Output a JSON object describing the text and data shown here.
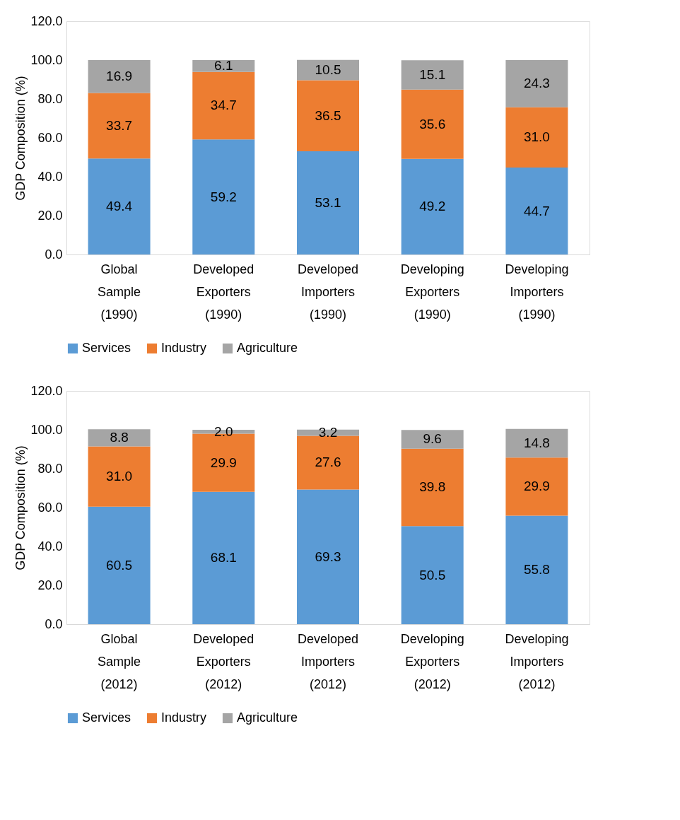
{
  "chart_data": [
    {
      "type": "bar",
      "stacked": true,
      "ylabel": "GDP Composition (%)",
      "categories": [
        "Global Sample (1990)",
        "Developed Exporters (1990)",
        "Developed Importers (1990)",
        "Developing Exporters (1990)",
        "Developing Importers (1990)"
      ],
      "series": [
        {
          "name": "Services",
          "color": "#5b9bd5",
          "values": [
            49.4,
            59.2,
            53.1,
            49.2,
            44.7
          ],
          "value_labels": [
            "49.4",
            "59.2",
            "53.1",
            "49.2",
            "44.7"
          ]
        },
        {
          "name": "Industry",
          "color": "#ed7d31",
          "values": [
            33.7,
            34.7,
            36.5,
            35.6,
            31.0
          ],
          "value_labels": [
            "33.7",
            "34.7",
            "36.5",
            "35.6",
            "31.0"
          ]
        },
        {
          "name": "Agriculture",
          "color": "#a5a5a5",
          "values": [
            16.9,
            6.1,
            10.5,
            15.1,
            24.3
          ],
          "value_labels": [
            "16.9",
            "6.1",
            "10.5",
            "15.1",
            "24.3"
          ]
        }
      ],
      "ylim": [
        0,
        120
      ],
      "yticks": [
        {
          "value": 0,
          "label": "0.0"
        },
        {
          "value": 20,
          "label": "20.0"
        },
        {
          "value": 40,
          "label": "40.0"
        },
        {
          "value": 60,
          "label": "60.0"
        },
        {
          "value": 80,
          "label": "80.0"
        },
        {
          "value": 100,
          "label": "100.0"
        },
        {
          "value": 120,
          "label": "120.0"
        }
      ],
      "grid": false,
      "legend": "bottom"
    },
    {
      "type": "bar",
      "stacked": true,
      "ylabel": "GDP Composition (%)",
      "categories": [
        "Global Sample (2012)",
        "Developed Exporters (2012)",
        "Developed Importers (2012)",
        "Developing Exporters (2012)",
        "Developing Importers (2012)"
      ],
      "series": [
        {
          "name": "Services",
          "color": "#5b9bd5",
          "values": [
            60.5,
            68.1,
            69.3,
            50.5,
            55.8
          ],
          "value_labels": [
            "60.5",
            "68.1",
            "69.3",
            "50.5",
            "55.8"
          ]
        },
        {
          "name": "Industry",
          "color": "#ed7d31",
          "values": [
            31.0,
            29.9,
            27.6,
            39.8,
            29.9
          ],
          "value_labels": [
            "31.0",
            "29.9",
            "27.6",
            "39.8",
            "29.9"
          ]
        },
        {
          "name": "Agriculture",
          "color": "#a5a5a5",
          "values": [
            8.8,
            2.0,
            3.2,
            9.6,
            14.8
          ],
          "value_labels": [
            "8.8",
            "2.0",
            "3.2",
            "9.6",
            "14.8"
          ]
        }
      ],
      "ylim": [
        0,
        120
      ],
      "yticks": [
        {
          "value": 0,
          "label": "0.0"
        },
        {
          "value": 20,
          "label": "20.0"
        },
        {
          "value": 40,
          "label": "40.0"
        },
        {
          "value": 60,
          "label": "60.0"
        },
        {
          "value": 80,
          "label": "80.0"
        },
        {
          "value": 100,
          "label": "100.0"
        },
        {
          "value": 120,
          "label": "120.0"
        }
      ],
      "grid": false,
      "legend": "bottom"
    }
  ]
}
